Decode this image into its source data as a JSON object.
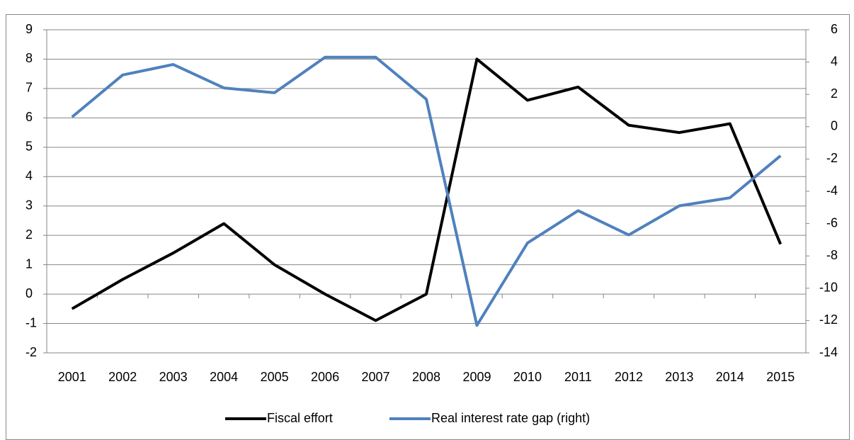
{
  "chart_data": {
    "type": "line",
    "categories": [
      "2001",
      "2002",
      "2003",
      "2004",
      "2005",
      "2006",
      "2007",
      "2008",
      "2009",
      "2010",
      "2011",
      "2012",
      "2013",
      "2014",
      "2015"
    ],
    "series": [
      {
        "name": "Fiscal effort",
        "color": "#000000",
        "values": [
          -0.5,
          0.5,
          1.4,
          2.4,
          1.0,
          0.0,
          -0.9,
          0.0,
          8.0,
          6.6,
          7.05,
          5.75,
          5.5,
          5.8,
          1.7
        ]
      },
      {
        "name": "Real interest rate gap (right)",
        "color": "#4f81bd",
        "axis": "y2",
        "values": [
          0.6,
          3.2,
          3.85,
          2.4,
          2.1,
          4.3,
          4.3,
          1.7,
          -12.3,
          -7.2,
          -5.2,
          -6.7,
          -4.9,
          -4.4,
          -1.8
        ]
      }
    ],
    "ylim": [
      -2,
      9
    ],
    "yticks": [
      -2,
      -1,
      0,
      1,
      2,
      3,
      4,
      5,
      6,
      7,
      8,
      9
    ],
    "y2lim": [
      -14,
      6
    ],
    "y2ticks": [
      -14,
      -12,
      -10,
      -8,
      -6,
      -4,
      -2,
      0,
      2,
      4,
      6
    ],
    "grid": true,
    "legend": "bottom"
  }
}
